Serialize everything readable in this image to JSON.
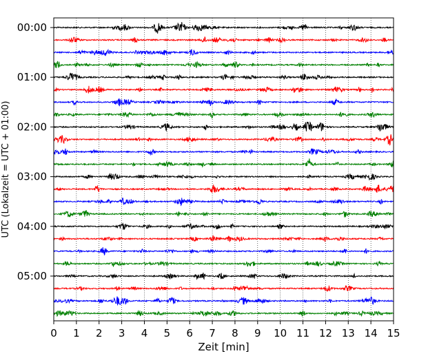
{
  "chart_data": {
    "type": "line",
    "xlabel": "Zeit  [min]",
    "ylabel": "UTC (Lokalzeit = UTC + 01:00)",
    "xlim": [
      0,
      15
    ],
    "x_ticks": [
      0,
      1,
      2,
      3,
      4,
      5,
      6,
      7,
      8,
      9,
      10,
      11,
      12,
      13,
      14,
      15
    ],
    "x_tick_labels": [
      "0",
      "1",
      "2",
      "3",
      "4",
      "5",
      "6",
      "7",
      "8",
      "9",
      "10",
      "11",
      "12",
      "13",
      "14",
      "15"
    ],
    "y_tick_labels": [
      "00:00",
      "01:00",
      "02:00",
      "03:00",
      "04:00",
      "05:00"
    ],
    "trace_interval_min": 15,
    "trace_count": 24,
    "trace_colors": [
      "#000000",
      "#ff0000",
      "#0000ff",
      "#008000"
    ],
    "grid": "vertical dotted lines at each minute"
  }
}
